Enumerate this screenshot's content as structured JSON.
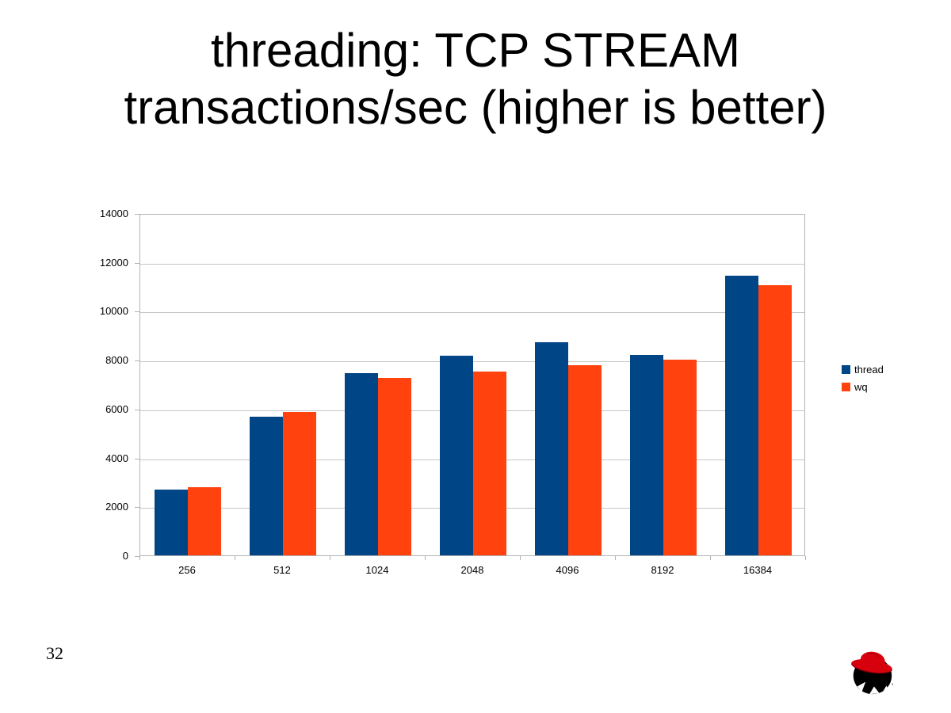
{
  "slide": {
    "title_line1": "threading: TCP STREAM",
    "title_line2": "transactions/sec (higher is better)",
    "page_number": "32",
    "logo": "redhat-shadowman-logo"
  },
  "chart_data": {
    "type": "bar",
    "title": "",
    "xlabel": "",
    "ylabel": "",
    "categories": [
      "256",
      "512",
      "1024",
      "2048",
      "4096",
      "8192",
      "16384"
    ],
    "series": [
      {
        "name": "thread",
        "color": "#004586",
        "values": [
          2700,
          5700,
          7500,
          8200,
          8750,
          8250,
          11500
        ]
      },
      {
        "name": "wq",
        "color": "#FF420E",
        "values": [
          2800,
          5900,
          7300,
          7550,
          7800,
          8050,
          11100
        ]
      }
    ],
    "ylim": [
      0,
      14000
    ],
    "ytick": 2000,
    "ytick_labels": [
      "0",
      "2000",
      "4000",
      "6000",
      "8000",
      "10000",
      "12000",
      "14000"
    ],
    "grid": true,
    "legend_position": "right",
    "grid_color": "#c6c6c6",
    "axis_color": "#b3b3b3"
  }
}
